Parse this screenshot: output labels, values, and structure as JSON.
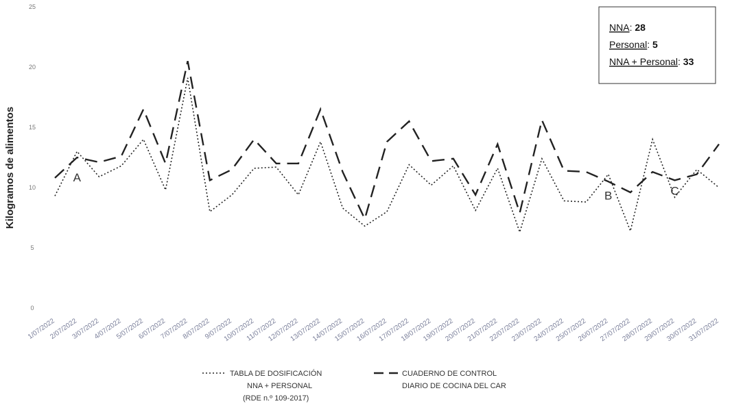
{
  "chart_data": {
    "type": "line",
    "ylabel": "Kilogramos de alimentos",
    "ylim": [
      0,
      25
    ],
    "yticks": [
      0,
      5,
      10,
      15,
      20,
      25
    ],
    "grid": false,
    "categories": [
      "1/07/2022",
      "2/07/2022",
      "3/07/2022",
      "4/07/2022",
      "5/07/2022",
      "6/07/2022",
      "7/07/2022",
      "8/07/2022",
      "9/07/2022",
      "10/07/2022",
      "11/07/2022",
      "12/07/2022",
      "13/07/2022",
      "14/07/2022",
      "15/07/2022",
      "16/07/2022",
      "17/07/2022",
      "18/07/2022",
      "19/07/2022",
      "20/07/2022",
      "21/07/2022",
      "22/07/2022",
      "23/07/2022",
      "24/07/2022",
      "25/07/2022",
      "26/07/2022",
      "27/07/2022",
      "28/07/2022",
      "29/07/2022",
      "30/07/2022",
      "31/07/2022"
    ],
    "series": [
      {
        "name": "TABLA DE DOSIFICACIÓN NNA + PERSONAL (RDE n.º 109-2017)",
        "legend_lines": [
          "TABLA DE DOSIFICACIÓN",
          "NNA + PERSONAL",
          "(RDE n.º 109-2017)"
        ],
        "style": "dotted",
        "color": "#222222",
        "values": [
          9.3,
          13.0,
          10.9,
          11.8,
          14.0,
          9.8,
          19.1,
          8.0,
          9.4,
          11.6,
          11.7,
          9.4,
          13.8,
          8.3,
          6.8,
          8.0,
          11.9,
          10.2,
          11.8,
          8.1,
          11.6,
          6.3,
          12.4,
          8.9,
          8.8,
          11.1,
          6.4,
          14.0,
          9.2,
          11.5,
          10.0
        ]
      },
      {
        "name": "CUADERNO DE CONTROL DIARIO DE COCINA DEL CAR",
        "legend_lines": [
          "CUADERNO DE CONTROL",
          "DIARIO DE COCINA DEL CAR"
        ],
        "style": "dashed",
        "color": "#222222",
        "values": [
          10.8,
          12.5,
          12.1,
          12.6,
          16.5,
          12.0,
          20.5,
          10.6,
          11.5,
          14.0,
          12.0,
          12.0,
          16.5,
          11.3,
          7.4,
          13.8,
          15.5,
          12.2,
          12.4,
          9.4,
          13.6,
          7.9,
          15.6,
          11.4,
          11.3,
          10.5,
          9.6,
          11.3,
          10.6,
          11.1,
          13.6
        ]
      }
    ],
    "annotations": [
      {
        "text": "A",
        "x": "2/07/2022",
        "y": 10.5
      },
      {
        "text": "B",
        "x": "26/07/2022",
        "y": 9.0
      },
      {
        "text": "C",
        "x": "29/07/2022",
        "y": 9.4
      }
    ]
  },
  "info_box": {
    "lines": [
      {
        "label": "NNA",
        "value": "28"
      },
      {
        "label": "Personal",
        "value": "5"
      },
      {
        "label": "NNA + Personal",
        "value": "33"
      }
    ]
  }
}
